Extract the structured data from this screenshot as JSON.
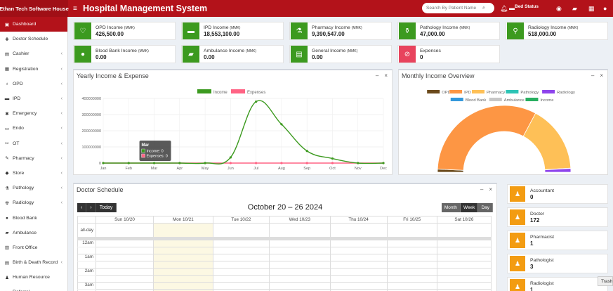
{
  "brand": "Ethan Tech Software House",
  "app_title": "Hospital Management System",
  "search_placeholder": "Search By Patient Name",
  "bed_status": "Bed Status",
  "sidebar": [
    {
      "label": "Dashboard",
      "icon": "dashboard-icon",
      "active": true,
      "chevron": false
    },
    {
      "label": "Doctor Schedule",
      "icon": "doctor-icon",
      "chevron": false
    },
    {
      "label": "Cashier",
      "icon": "cashier-icon",
      "chevron": true
    },
    {
      "label": "Registration",
      "icon": "registration-icon",
      "chevron": true
    },
    {
      "label": "OPD",
      "icon": "opd-icon",
      "chevron": true
    },
    {
      "label": "IPD",
      "icon": "ipd-icon",
      "chevron": true
    },
    {
      "label": "Emergency",
      "icon": "emergency-icon",
      "chevron": true
    },
    {
      "label": "Endo",
      "icon": "endo-icon",
      "chevron": true
    },
    {
      "label": "OT",
      "icon": "ot-icon",
      "chevron": true
    },
    {
      "label": "Pharmacy",
      "icon": "pharmacy-icon",
      "chevron": true
    },
    {
      "label": "Store",
      "icon": "store-icon",
      "chevron": true
    },
    {
      "label": "Pathology",
      "icon": "pathology-icon",
      "chevron": true
    },
    {
      "label": "Radiology",
      "icon": "radiology-icon",
      "chevron": true
    },
    {
      "label": "Blood Bank",
      "icon": "blood-bank-icon",
      "chevron": false
    },
    {
      "label": "Ambulance",
      "icon": "ambulance-icon",
      "chevron": false
    },
    {
      "label": "Front Office",
      "icon": "front-office-icon",
      "chevron": false
    },
    {
      "label": "Birth & Death Record",
      "icon": "birth-death-icon",
      "chevron": true
    },
    {
      "label": "Human Resource",
      "icon": "human-resource-icon",
      "chevron": false
    },
    {
      "label": "Referral",
      "icon": "referral-icon",
      "chevron": false
    }
  ],
  "stats": [
    {
      "label": "OPD Income",
      "unit": "(MMK)",
      "value": "426,500.00",
      "color": "#3c9a1f",
      "icon": "stethoscope-icon"
    },
    {
      "label": "IPD Income",
      "unit": "(MMK)",
      "value": "18,553,100.00",
      "color": "#3c9a1f",
      "icon": "bed-icon"
    },
    {
      "label": "Pharmacy Income",
      "unit": "(MMK)",
      "value": "9,390,547.00",
      "color": "#3c9a1f",
      "icon": "mortar-pestle-icon"
    },
    {
      "label": "Pathology Income",
      "unit": "(MMK)",
      "value": "47,000.00",
      "color": "#3c9a1f",
      "icon": "flask-icon"
    },
    {
      "label": "Radiology Income",
      "unit": "(MMK)",
      "value": "518,000.00",
      "color": "#3c9a1f",
      "icon": "microscope-icon"
    },
    {
      "label": "Blood Bank Income",
      "unit": "(MMK)",
      "value": "0.00",
      "color": "#3c9a1f",
      "icon": "blood-drop-icon"
    },
    {
      "label": "Ambulance Income",
      "unit": "(MMK)",
      "value": "0.00",
      "color": "#3c9a1f",
      "icon": "ambulance-icon"
    },
    {
      "label": "General Income",
      "unit": "(MMK)",
      "value": "0.00",
      "color": "#3c9a1f",
      "icon": "money-icon"
    },
    {
      "label": "Expenses",
      "unit": "",
      "value": "0",
      "color": "#e8435d",
      "icon": "expense-icon"
    }
  ],
  "yearly_panel_title": "Yearly Income & Expense",
  "monthly_panel_title": "Monthly Income Overview",
  "chart_data": [
    {
      "type": "line",
      "title": "Yearly Income & Expense",
      "categories": [
        "Jan",
        "Feb",
        "Mar",
        "Apr",
        "May",
        "Jun",
        "Jul",
        "Aug",
        "Sep",
        "Oct",
        "Nov",
        "Dec"
      ],
      "series": [
        {
          "name": "Income",
          "color": "#3c9a1f",
          "values": [
            0,
            0,
            0,
            0,
            0,
            35000000,
            380000000,
            240000000,
            75000000,
            28000000,
            0,
            0
          ]
        },
        {
          "name": "Expenses",
          "color": "#ff6384",
          "values": [
            0,
            0,
            0,
            0,
            0,
            0,
            0,
            0,
            0,
            0,
            0,
            0
          ]
        }
      ],
      "yticks": [
        "0",
        "100000000",
        "200000000",
        "300000000",
        "400000000"
      ],
      "ylim": [
        0,
        400000000
      ],
      "legend": "top",
      "tooltip": {
        "title": "Mar",
        "lines": [
          "Income: 0",
          "Expenses: 0"
        ]
      }
    },
    {
      "type": "pie",
      "title": "Monthly Income Overview",
      "style": "half-doughnut",
      "legend": "top",
      "slices": [
        {
          "name": "OPD",
          "color": "#6b4a1c",
          "value": 426500
        },
        {
          "name": "IPD",
          "color": "#fd9644",
          "value": 18553100
        },
        {
          "name": "Pharmacy",
          "color": "#fec057",
          "value": 9390547
        },
        {
          "name": "Pathology",
          "color": "#2ec4b6",
          "value": 47000
        },
        {
          "name": "Radiology",
          "color": "#8e44ec",
          "value": 518000
        },
        {
          "name": "Blood Bank",
          "color": "#3498db",
          "value": 0
        },
        {
          "name": "Ambulance",
          "color": "#c7c7c7",
          "value": 0
        },
        {
          "name": "Income",
          "color": "#27ae60",
          "value": 0
        }
      ]
    }
  ],
  "schedule": {
    "title": "Doctor Schedule",
    "range": "October 20 – 26 2024",
    "today": "Today",
    "views": [
      "Month",
      "Week",
      "Day"
    ],
    "days": [
      "Sun 10/20",
      "Mon 10/21",
      "Tue 10/22",
      "Wed 10/23",
      "Thu 10/24",
      "Fri 10/25",
      "Sat 10/26"
    ],
    "allday": "all-day",
    "times": [
      "12am",
      "1am",
      "2am",
      "3am"
    ]
  },
  "staff": [
    {
      "label": "Accountant",
      "value": "0"
    },
    {
      "label": "Doctor",
      "value": "172"
    },
    {
      "label": "Pharmacist",
      "value": "1"
    },
    {
      "label": "Pathologist",
      "value": "3"
    },
    {
      "label": "Radiologist",
      "value": "1"
    }
  ],
  "trash_label": "Trash"
}
